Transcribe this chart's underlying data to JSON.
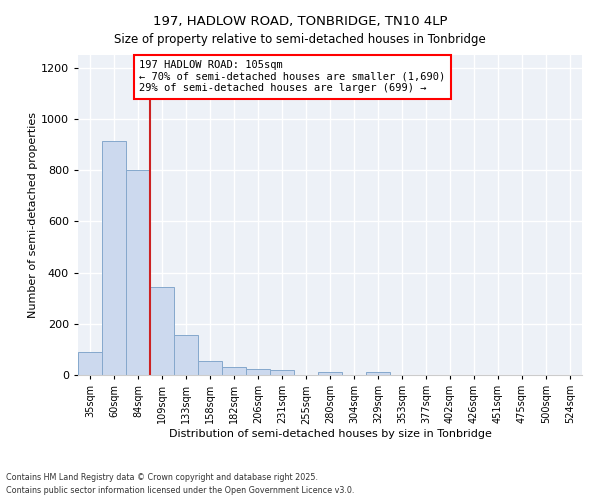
{
  "title1": "197, HADLOW ROAD, TONBRIDGE, TN10 4LP",
  "title2": "Size of property relative to semi-detached houses in Tonbridge",
  "xlabel": "Distribution of semi-detached houses by size in Tonbridge",
  "ylabel": "Number of semi-detached properties",
  "categories": [
    "35sqm",
    "60sqm",
    "84sqm",
    "109sqm",
    "133sqm",
    "158sqm",
    "182sqm",
    "206sqm",
    "231sqm",
    "255sqm",
    "280sqm",
    "304sqm",
    "329sqm",
    "353sqm",
    "377sqm",
    "402sqm",
    "426sqm",
    "451sqm",
    "475sqm",
    "500sqm",
    "524sqm"
  ],
  "values": [
    90,
    915,
    800,
    345,
    155,
    55,
    30,
    25,
    20,
    0,
    10,
    0,
    10,
    0,
    0,
    0,
    0,
    0,
    0,
    0,
    0
  ],
  "bar_color": "#ccd9ee",
  "bar_edge_color": "#85a8cc",
  "vline_color": "#cc2222",
  "annotation_text": "197 HADLOW ROAD: 105sqm\n← 70% of semi-detached houses are smaller (1,690)\n29% of semi-detached houses are larger (699) →",
  "footer": "Contains HM Land Registry data © Crown copyright and database right 2025.\nContains public sector information licensed under the Open Government Licence v3.0.",
  "ylim": [
    0,
    1250
  ],
  "yticks": [
    0,
    200,
    400,
    600,
    800,
    1000,
    1200
  ],
  "background_color": "#edf1f7",
  "grid_color": "#ffffff",
  "vline_position": 2.5
}
